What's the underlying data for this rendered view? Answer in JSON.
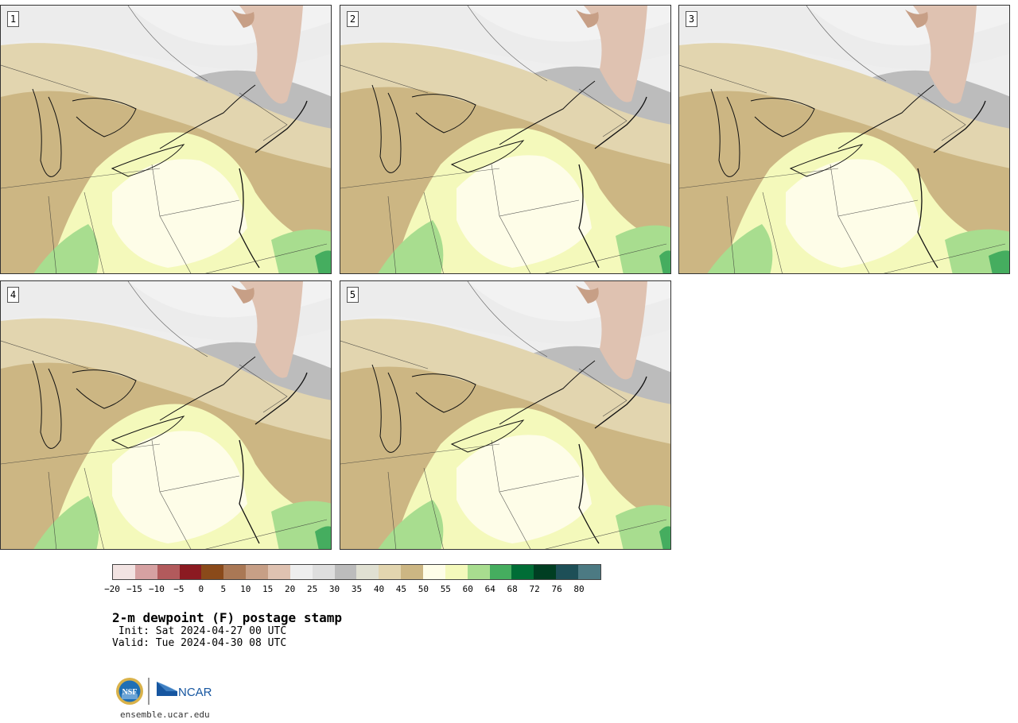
{
  "panels": [
    {
      "label": "1"
    },
    {
      "label": "2"
    },
    {
      "label": "3"
    },
    {
      "label": "4"
    },
    {
      "label": "5"
    }
  ],
  "colorbar": {
    "colors": [
      "#f2e3e2",
      "#d6a1a2",
      "#b25a5c",
      "#8b1a21",
      "#8a4a1a",
      "#aa7855",
      "#c79f86",
      "#dfc2b1",
      "#eeeeee",
      "#dedede",
      "#bcbcbc",
      "#e0e0d2",
      "#e2d5af",
      "#ccb683",
      "#fefde8",
      "#f4f9bb",
      "#a8dd8f",
      "#45ad5f",
      "#006d36",
      "#003e22",
      "#1d4f57",
      "#4c7a83"
    ],
    "tick_labels": [
      "−20",
      "−15",
      "−10",
      "−5",
      "0",
      "5",
      "10",
      "15",
      "20",
      "25",
      "30",
      "35",
      "40",
      "45",
      "50",
      "55",
      "60",
      "64",
      "68",
      "72",
      "76",
      "80"
    ]
  },
  "title": "2-m dewpoint (F) postage stamp",
  "init_text": " Init: Sat 2024-04-27 00 UTC",
  "valid_text": "Valid: Tue 2024-04-30 08 UTC",
  "logo": {
    "nsf": "NSF",
    "ncar": "NCAR"
  },
  "footer": "ensemble.ucar.edu"
}
